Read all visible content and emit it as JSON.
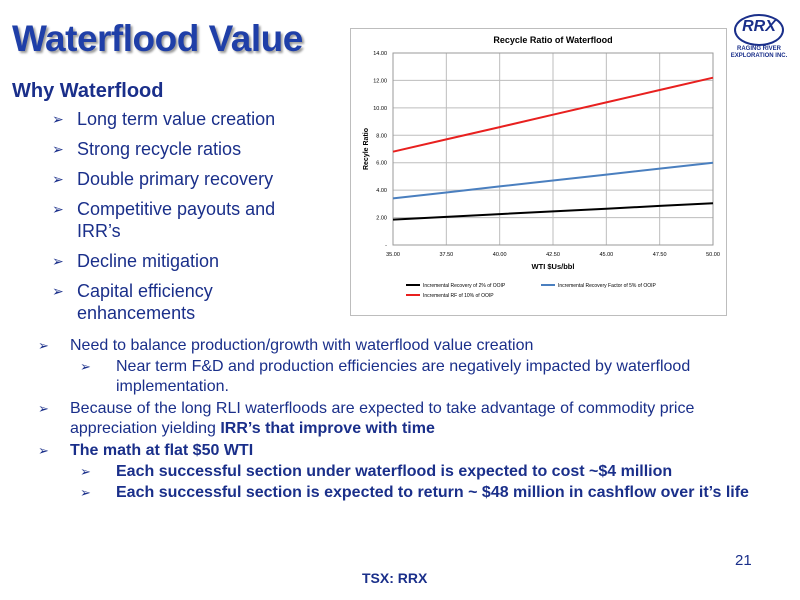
{
  "title": "Waterflood Value",
  "subtitle": "Why Waterflood",
  "why_bullets": [
    "Long term value creation",
    "Strong recycle ratios",
    "Double primary recovery",
    "Competitive payouts and IRR’s",
    "Decline mitigation",
    "Capital efficiency enhancements"
  ],
  "logo": {
    "name": "RRX",
    "subtitle": "RAGING RIVER EXPLORATION INC."
  },
  "chart_data": {
    "type": "line",
    "title": "Recycle Ratio of Waterflood",
    "xlabel": "WTI $Us/bbl",
    "ylabel": "Recyle Ratio",
    "x": [
      35,
      37.5,
      40,
      42.5,
      45,
      47.5,
      50
    ],
    "x_tick_labels": [
      "35.00",
      "37.50",
      "40.00",
      "42.50",
      "45.00",
      "47.50",
      "50.00"
    ],
    "ylim": [
      0,
      14
    ],
    "y_ticks": [
      0,
      2,
      4,
      6,
      8,
      10,
      12,
      14
    ],
    "y_tick_labels": [
      "-",
      "2.00",
      "4.00",
      "6.00",
      "8.00",
      "10.00",
      "12.00",
      "14.00"
    ],
    "grid": true,
    "legend_position": "bottom",
    "series": [
      {
        "name": "Incremental Recovery of 2% of OOIP",
        "color": "#000000",
        "values": [
          1.85,
          2.05,
          2.25,
          2.45,
          2.65,
          2.85,
          3.05
        ]
      },
      {
        "name": "Incremental Recovery Factor of 5% of OOIP",
        "color": "#4a7fbf",
        "values": [
          3.4,
          3.83,
          4.27,
          4.7,
          5.13,
          5.57,
          6.0
        ]
      },
      {
        "name": "Incremental RF of 10% of OOIP",
        "color": "#e8201f",
        "values": [
          6.8,
          7.7,
          8.6,
          9.5,
          10.4,
          11.3,
          12.2
        ]
      }
    ]
  },
  "lower": {
    "b1": "Need to balance production/growth with waterflood value creation",
    "b1_sub": "Near term F&D and production efficiencies are negatively impacted by waterflood implementation.",
    "b2_text": "Because of the long RLI waterfloods are expected to take advantage of commodity price appreciation yielding ",
    "b2_bold": "IRR’s that improve with time",
    "b3": "The math at flat $50 WTI",
    "b3_sub1": "Each successful section under waterflood is expected to cost ~$4 million",
    "b3_sub2": "Each successful section is expected to return ~ $48 million in cashflow over it’s life"
  },
  "page_number": "21",
  "ticker": "TSX: RRX"
}
